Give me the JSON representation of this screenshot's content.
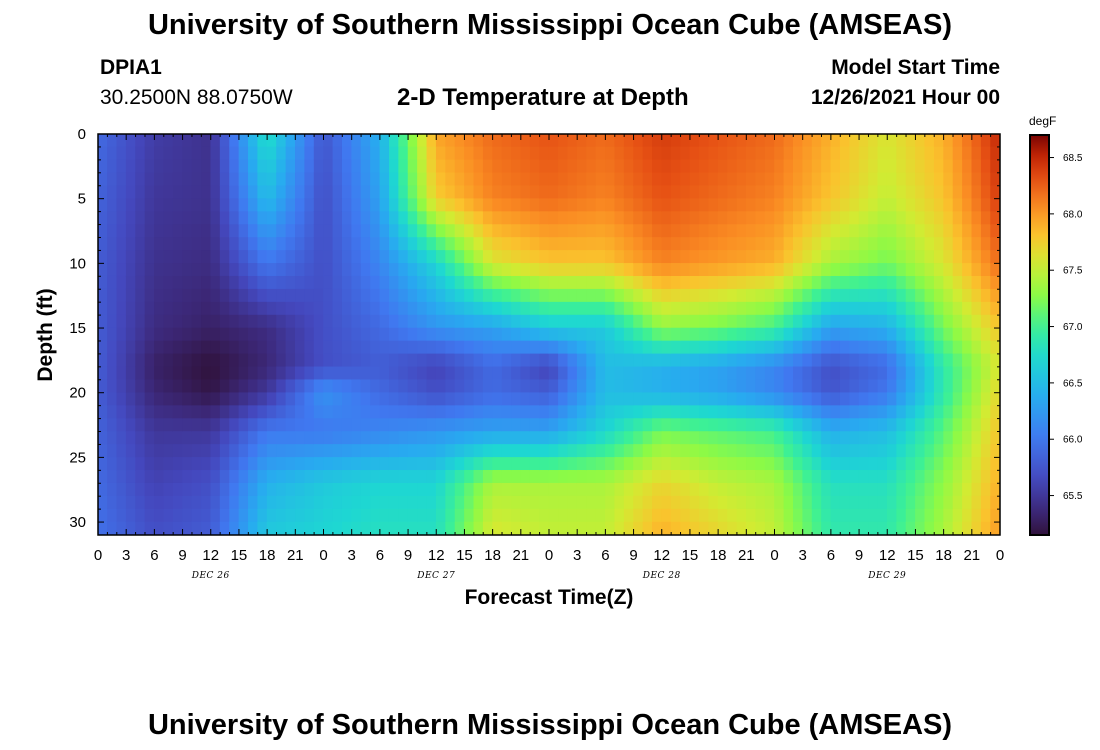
{
  "header": {
    "title": "University of Southern Mississippi Ocean Cube (AMSEAS)",
    "station_id": "DPIA1",
    "station_coords": "30.2500N  88.0750W",
    "plot_title": "2-D Temperature at Depth",
    "model_start_label": "Model Start Time",
    "model_start_value": "12/26/2021 Hour 00"
  },
  "footer": {
    "title": "University of Southern Mississippi Ocean Cube (AMSEAS)"
  },
  "chart_data": {
    "type": "heatmap",
    "title": "2-D Temperature at Depth",
    "xlabel": "Forecast Time(Z)",
    "ylabel": "Depth (ft)",
    "colorbar_unit": "degF",
    "colorbar_ticks": [
      "68.5",
      "68.0",
      "67.5",
      "67.0",
      "66.5",
      "66.0",
      "65.5"
    ],
    "colorbar_range": [
      65.15,
      68.7
    ],
    "x_hours": [
      0,
      6,
      12,
      18,
      24,
      30,
      36,
      42,
      48,
      54,
      60,
      66,
      72,
      78,
      84,
      90,
      96
    ],
    "x_range": [
      0,
      96
    ],
    "x_tick_labels": [
      "0",
      "3",
      "6",
      "9",
      "12",
      "15",
      "18",
      "21",
      "0",
      "3",
      "6",
      "9",
      "12",
      "15",
      "18",
      "21",
      "0",
      "3",
      "6",
      "9",
      "12",
      "15",
      "18",
      "21",
      "0",
      "3",
      "6",
      "9",
      "12",
      "15",
      "18",
      "21",
      "0"
    ],
    "day_labels": [
      "DEC 26",
      "DEC 27",
      "DEC 28",
      "DEC 29"
    ],
    "depths_ft": [
      0,
      5,
      10,
      15,
      18,
      20,
      23,
      27,
      31
    ],
    "y_range": [
      0,
      31
    ],
    "y_tick_labels": [
      "0",
      "5",
      "10",
      "15",
      "20",
      "25",
      "30"
    ],
    "values_degF": [
      [
        65.9,
        65.55,
        65.45,
        66.8,
        65.75,
        66.4,
        67.95,
        68.2,
        68.3,
        68.2,
        68.4,
        68.3,
        68.2,
        67.9,
        67.6,
        67.9,
        68.5
      ],
      [
        65.85,
        65.5,
        65.45,
        66.5,
        65.7,
        66.3,
        67.75,
        68.1,
        68.2,
        68.1,
        68.3,
        68.2,
        68.1,
        67.8,
        67.5,
        67.8,
        68.4
      ],
      [
        65.8,
        65.45,
        65.4,
        66.0,
        65.7,
        66.1,
        66.7,
        67.6,
        67.8,
        67.8,
        68.1,
        68.0,
        67.9,
        67.4,
        67.2,
        67.6,
        68.2
      ],
      [
        65.8,
        65.4,
        65.3,
        65.4,
        65.7,
        65.9,
        66.2,
        66.3,
        66.6,
        66.6,
        67.3,
        67.2,
        67.0,
        66.3,
        66.4,
        67.2,
        67.8
      ],
      [
        65.8,
        65.3,
        65.15,
        65.35,
        65.7,
        65.8,
        65.6,
        65.9,
        65.6,
        66.5,
        66.4,
        66.3,
        66.1,
        65.7,
        65.9,
        66.9,
        67.6
      ],
      [
        65.8,
        65.35,
        65.2,
        65.5,
        66.2,
        65.9,
        65.7,
        65.9,
        65.8,
        66.5,
        66.4,
        66.3,
        66.1,
        65.75,
        66.0,
        66.9,
        67.7
      ],
      [
        65.85,
        65.5,
        65.5,
        66.0,
        66.0,
        66.1,
        66.2,
        66.3,
        66.3,
        66.7,
        67.2,
        67.1,
        67.0,
        66.4,
        66.5,
        67.1,
        67.8
      ],
      [
        65.9,
        65.6,
        65.7,
        66.4,
        66.6,
        66.7,
        66.7,
        67.4,
        67.4,
        67.4,
        67.7,
        67.5,
        67.4,
        66.8,
        66.8,
        67.3,
        67.9
      ],
      [
        65.95,
        65.7,
        65.8,
        66.6,
        66.7,
        66.8,
        66.8,
        67.6,
        67.5,
        67.5,
        67.9,
        67.7,
        67.5,
        66.9,
        66.9,
        67.4,
        68.0
      ]
    ]
  }
}
